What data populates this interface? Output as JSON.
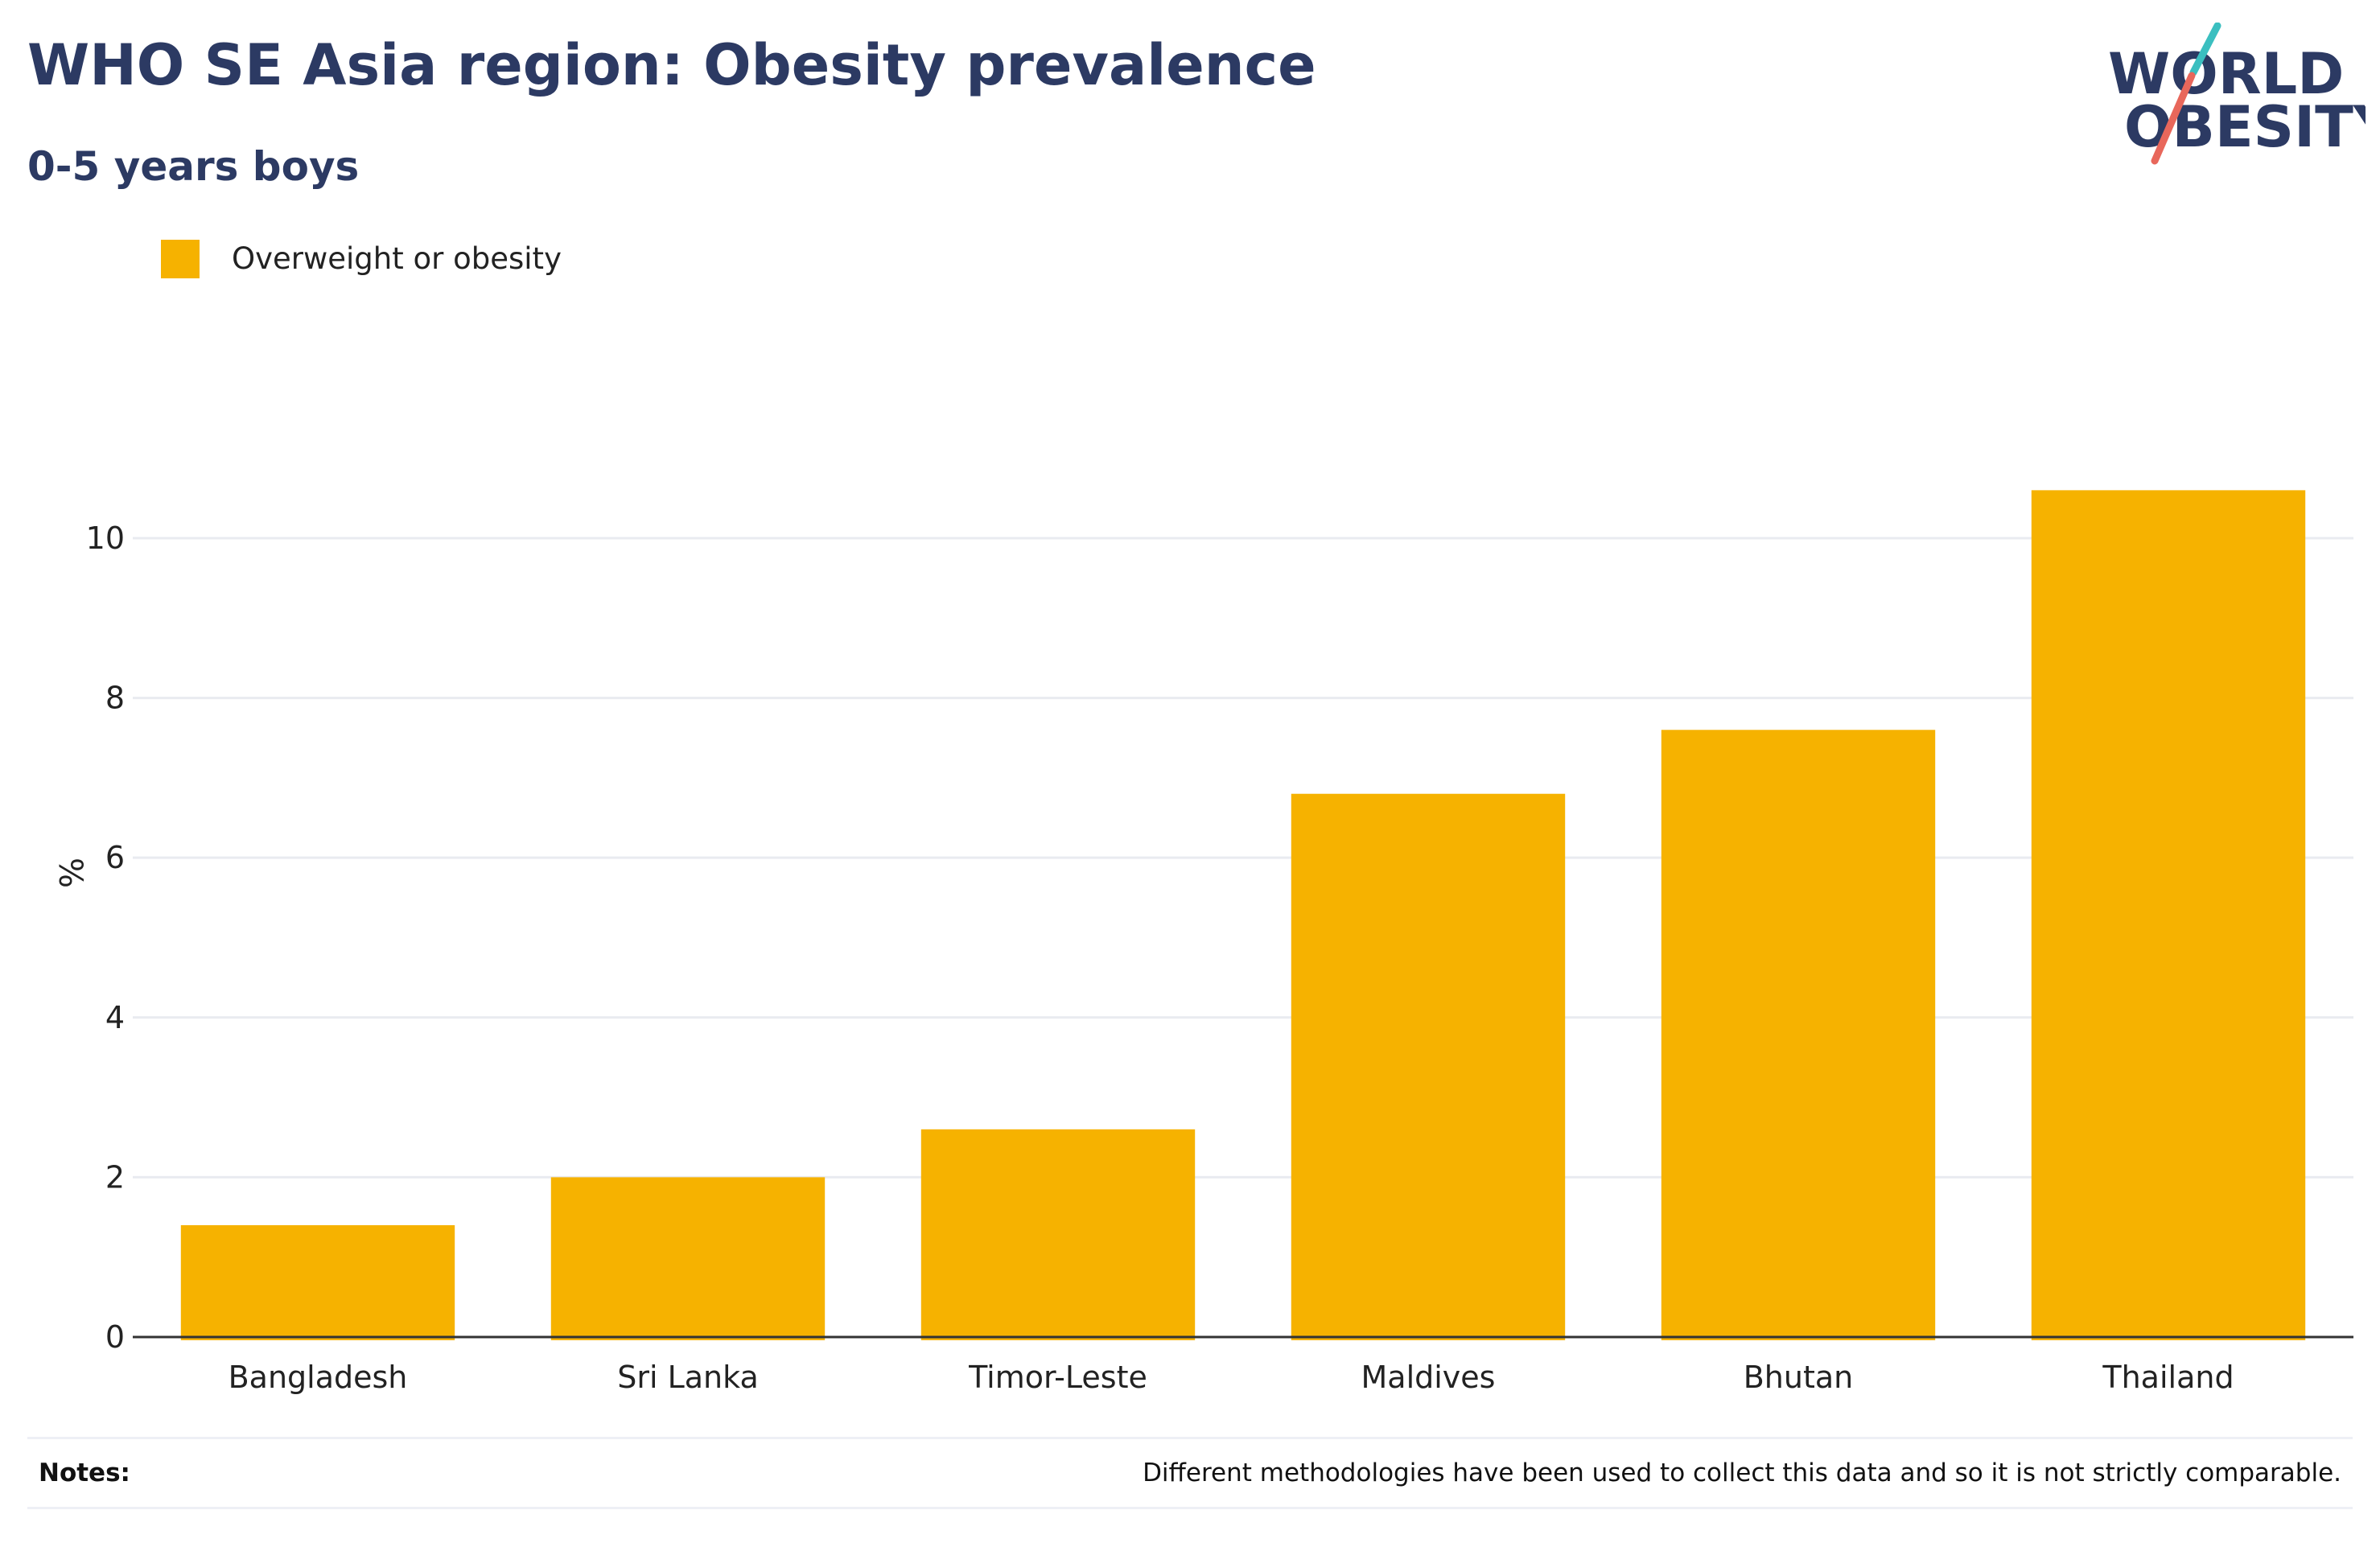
{
  "header": {
    "title": "WHO SE Asia region: Obesity prevalence",
    "subtitle": "0-5 years boys"
  },
  "logo": {
    "line1": "WORLD",
    "line2": "OBESITY",
    "colors": {
      "text": "#2c3a63",
      "teal": "#3bbfc0",
      "coral": "#e8675b"
    }
  },
  "colors": {
    "bar": "#f6b200",
    "title": "#2c3a63",
    "grid": "#e9ebf0",
    "axis": "#333333"
  },
  "chart_data": {
    "type": "bar",
    "categories": [
      "Bangladesh",
      "Sri Lanka",
      "Timor-Leste",
      "Maldives",
      "Bhutan",
      "Thailand"
    ],
    "series": [
      {
        "name": "Overweight or obesity",
        "values": [
          1.4,
          2.0,
          2.6,
          6.8,
          7.6,
          10.6
        ]
      }
    ],
    "ylabel": "%",
    "xlabel": "",
    "ylim": [
      0,
      11.5
    ],
    "yticks": [
      0,
      2,
      4,
      6,
      8,
      10
    ],
    "grid": true,
    "legend_position": "top-left"
  },
  "notes": {
    "label": "Notes:",
    "text": "Different methodologies have been used to collect this data and so it is not strictly comparable."
  }
}
